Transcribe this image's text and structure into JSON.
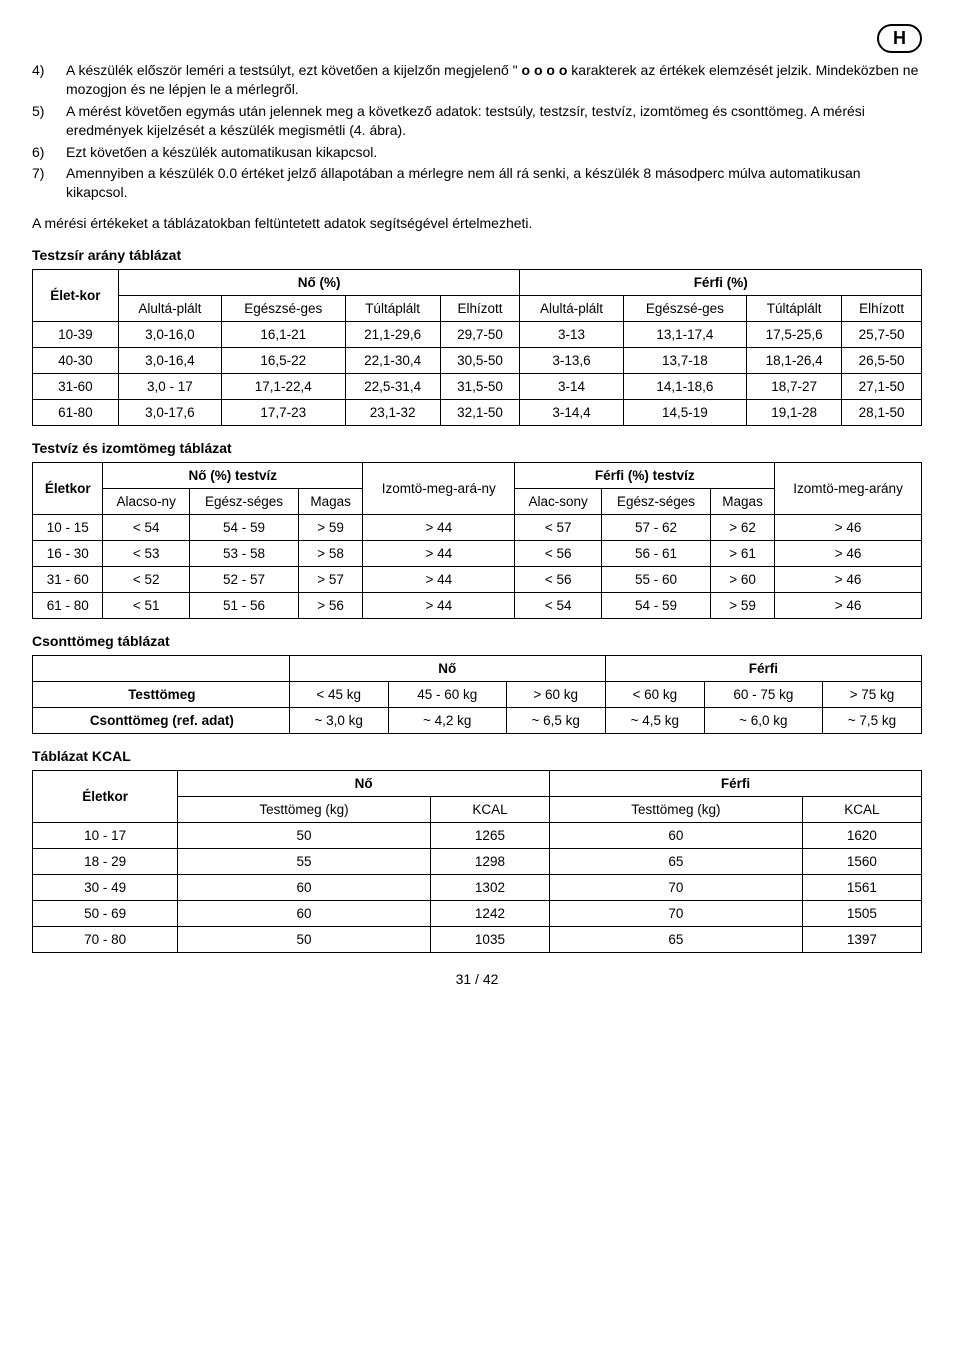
{
  "header": {
    "badge": "H"
  },
  "steps": [
    {
      "n": "4)",
      "text_a": "A készülék először leméri a testsúlyt, ezt követően a kijelzőn megjelenő \" ",
      "bold": "o o o o",
      "text_b": " karakterek az értékek elemzését jelzik. Mindeközben ne mozogjon és ne lépjen le a mérlegről."
    },
    {
      "n": "5)",
      "text_a": "A mérést követően egymás után jelennek meg a következő adatok: testsúly, testzsír, testvíz, izomtömeg és csonttömeg. A mérési eredmények kijelzését a készülék megismétli (4. ábra)."
    },
    {
      "n": "6)",
      "text_a": "Ezt követően a készülék automatikusan kikapcsol."
    },
    {
      "n": "7)",
      "text_a": "Amennyiben a készülék 0.0 értéket jelző állapotában a mérlegre nem áll rá senki, a készülék 8 másodperc múlva automatikusan kikapcsol."
    }
  ],
  "intro_after_steps": "A mérési értékeket a táblázatokban feltüntetett adatok segítségével értelmezheti.",
  "titles": {
    "t1": "Testzsír arány táblázat",
    "t2": "Testvíz és izomtömeg táblázat",
    "t3": "Csonttömeg táblázat",
    "t4": "Táblázat KCAL"
  },
  "table1": {
    "col_age": "Élet-kor",
    "group_f": "Nő (%)",
    "group_m": "Férfi (%)",
    "sub": {
      "a": "Alultá-plált",
      "b": "Egészsé-ges",
      "c": "Túltáplált",
      "d": "Elhízott"
    },
    "rows": [
      [
        "10-39",
        "3,0-16,0",
        "16,1-21",
        "21,1-29,6",
        "29,7-50",
        "3-13",
        "13,1-17,4",
        "17,5-25,6",
        "25,7-50"
      ],
      [
        "40-30",
        "3,0-16,4",
        "16,5-22",
        "22,1-30,4",
        "30,5-50",
        "3-13,6",
        "13,7-18",
        "18,1-26,4",
        "26,5-50"
      ],
      [
        "31-60",
        "3,0 - 17",
        "17,1-22,4",
        "22,5-31,4",
        "31,5-50",
        "3-14",
        "14,1-18,6",
        "18,7-27",
        "27,1-50"
      ],
      [
        "61-80",
        "3,0-17,6",
        "17,7-23",
        "23,1-32",
        "32,1-50",
        "3-14,4",
        "14,5-19",
        "19,1-28",
        "28,1-50"
      ]
    ]
  },
  "table2": {
    "col_age": "Életkor",
    "group_f": "Nő (%) testvíz",
    "col_izom_f": "Izomtö-meg-ará-ny",
    "group_m": "Férfi (%) testvíz",
    "col_izom_m": "Izomtö-meg-arány",
    "sub": {
      "a": "Alacso-ny",
      "b": "Egész-séges",
      "c": "Magas",
      "d": "Alac-sony",
      "e": "Egész-séges",
      "f": "Magas"
    },
    "rows": [
      [
        "10 - 15",
        "< 54",
        "54 - 59",
        "> 59",
        "> 44",
        "< 57",
        "57 - 62",
        "> 62",
        "> 46"
      ],
      [
        "16 - 30",
        "< 53",
        "53 - 58",
        "> 58",
        "> 44",
        "< 56",
        "56 - 61",
        "> 61",
        "> 46"
      ],
      [
        "31 - 60",
        "< 52",
        "52 - 57",
        "> 57",
        "> 44",
        "< 56",
        "55 - 60",
        "> 60",
        "> 46"
      ],
      [
        "61 - 80",
        "< 51",
        "51 - 56",
        "> 56",
        "> 44",
        "< 54",
        "54 - 59",
        "> 59",
        "> 46"
      ]
    ]
  },
  "table3": {
    "group_f": "Nő",
    "group_m": "Férfi",
    "row1_label": "Testtömeg",
    "row1": [
      "< 45 kg",
      "45 - 60 kg",
      "> 60 kg",
      "< 60 kg",
      "60 - 75 kg",
      "> 75 kg"
    ],
    "row2_label": "Csonttömeg (ref. adat)",
    "row2": [
      "~ 3,0 kg",
      "~ 4,2 kg",
      "~ 6,5 kg",
      "~ 4,5 kg",
      "~ 6,0 kg",
      "~ 7,5 kg"
    ]
  },
  "table4": {
    "col_age": "Életkor",
    "group_f": "Nő",
    "group_m": "Férfi",
    "sub_mass": "Testtömeg (kg)",
    "sub_kcal": "KCAL",
    "rows": [
      [
        "10 - 17",
        "50",
        "1265",
        "60",
        "1620"
      ],
      [
        "18 - 29",
        "55",
        "1298",
        "65",
        "1560"
      ],
      [
        "30 - 49",
        "60",
        "1302",
        "70",
        "1561"
      ],
      [
        "50 - 69",
        "60",
        "1242",
        "70",
        "1505"
      ],
      [
        "70 - 80",
        "50",
        "1035",
        "65",
        "1397"
      ]
    ]
  },
  "pagenum": "31 / 42"
}
